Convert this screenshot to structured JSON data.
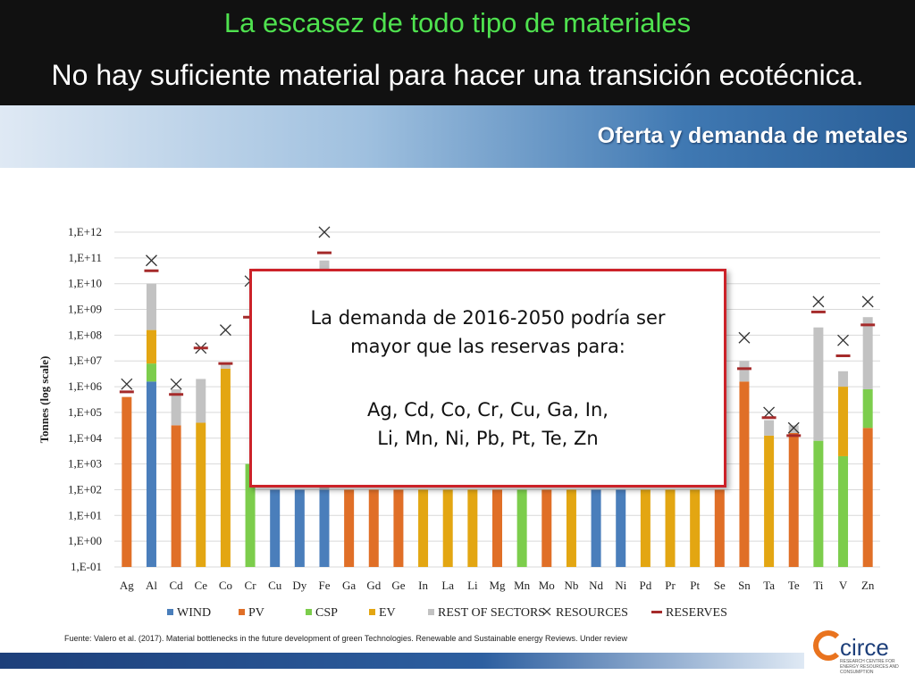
{
  "header": {
    "title": "La escasez de todo tipo de materiales",
    "subtitle": "No hay suficiente material para hacer una transición ecotécnica."
  },
  "band": {
    "title": "Oferta y demanda de metales"
  },
  "colors": {
    "wind": "#4a7ebb",
    "pv": "#e06f27",
    "csp": "#7ccd4c",
    "ev": "#e3a612",
    "rest": "#c2c2c2",
    "resources": "#333333",
    "reserves": "#a52a2a"
  },
  "chart_data": {
    "type": "bar",
    "stacked": true,
    "log_scale": true,
    "ylabel": "Tonnes (log scale)",
    "ylim": [
      -1,
      12
    ],
    "ytick_labels": [
      "1,E-01",
      "1,E+00",
      "1,E+01",
      "1,E+02",
      "1,E+03",
      "1,E+04",
      "1,E+05",
      "1,E+06",
      "1,E+07",
      "1,E+08",
      "1,E+09",
      "1,E+10",
      "1,E+11",
      "1,E+12"
    ],
    "categories": [
      "Ag",
      "Al",
      "Cd",
      "Ce",
      "Co",
      "Cr",
      "Cu",
      "Dy",
      "Fe",
      "Ga",
      "Gd",
      "Ge",
      "In",
      "La",
      "Li",
      "Mg",
      "Mn",
      "Mo",
      "Nb",
      "Nd",
      "Ni",
      "Pd",
      "Pr",
      "Pt",
      "Se",
      "Sn",
      "Ta",
      "Te",
      "Ti",
      "V",
      "Zn"
    ],
    "series_names": [
      "WIND",
      "PV",
      "CSP",
      "EV",
      "REST OF SECTORS"
    ],
    "stack_tops_log10": [
      [
        null,
        5.6,
        null,
        null,
        null
      ],
      [
        6.2,
        null,
        6.9,
        8.2,
        10.0
      ],
      [
        null,
        4.5,
        null,
        null,
        5.9
      ],
      [
        null,
        null,
        null,
        4.6,
        6.3
      ],
      [
        null,
        null,
        null,
        6.7,
        6.9
      ],
      [
        null,
        null,
        3.0,
        null,
        null
      ],
      [
        2.0,
        null,
        null,
        null,
        null
      ],
      [
        2.0,
        null,
        null,
        null,
        null
      ],
      [
        2.0,
        null,
        null,
        null,
        10.9
      ],
      [
        null,
        2.0,
        null,
        null,
        null
      ],
      [
        null,
        2.0,
        null,
        null,
        null
      ],
      [
        null,
        2.0,
        null,
        null,
        null
      ],
      [
        null,
        null,
        null,
        2.0,
        null
      ],
      [
        null,
        null,
        null,
        2.0,
        null
      ],
      [
        null,
        null,
        null,
        2.0,
        null
      ],
      [
        null,
        2.0,
        null,
        null,
        null
      ],
      [
        null,
        null,
        2.0,
        null,
        null
      ],
      [
        null,
        2.0,
        null,
        null,
        null
      ],
      [
        null,
        null,
        null,
        2.0,
        null
      ],
      [
        2.0,
        null,
        null,
        null,
        null
      ],
      [
        2.0,
        null,
        null,
        null,
        null
      ],
      [
        null,
        null,
        null,
        2.0,
        null
      ],
      [
        null,
        null,
        null,
        2.0,
        null
      ],
      [
        null,
        null,
        null,
        2.0,
        null
      ],
      [
        null,
        2.0,
        null,
        null,
        null
      ],
      [
        null,
        6.2,
        null,
        null,
        7.0
      ],
      [
        null,
        null,
        null,
        4.1,
        4.7
      ],
      [
        null,
        4.2,
        null,
        null,
        4.5
      ],
      [
        null,
        null,
        3.9,
        null,
        8.3
      ],
      [
        null,
        null,
        3.3,
        6.0,
        6.6
      ],
      [
        null,
        4.4,
        5.9,
        null,
        8.7
      ]
    ],
    "resources_log10": [
      6.1,
      10.9,
      6.1,
      7.5,
      8.2,
      10.1,
      null,
      null,
      12.0,
      null,
      null,
      null,
      null,
      null,
      null,
      null,
      null,
      null,
      null,
      null,
      null,
      null,
      null,
      null,
      null,
      7.9,
      5.0,
      4.4,
      9.3,
      7.8,
      9.3
    ],
    "reserves_log10": [
      5.8,
      10.5,
      5.7,
      7.5,
      6.9,
      8.7,
      null,
      null,
      11.2,
      null,
      null,
      null,
      null,
      null,
      null,
      null,
      null,
      null,
      null,
      null,
      null,
      null,
      null,
      null,
      null,
      6.7,
      4.8,
      4.1,
      8.9,
      7.2,
      8.4
    ],
    "legend": [
      "WIND",
      "PV",
      "CSP",
      "EV",
      "REST OF SECTORS",
      "RESOURCES",
      "RESERVES"
    ],
    "legend_position": "bottom"
  },
  "callout": {
    "line1": "La demanda de 2016-2050 podría ser",
    "line2": "mayor que las reservas para:",
    "line3": "Ag, Cd, Co, Cr, Cu, Ga, In,",
    "line4": "Li, Mn, Ni, Pb, Pt, Te, Zn"
  },
  "source": "Fuente: Valero et al. (2017). Material bottlenecks in the future development of green Technologies. Renewable and Sustainable energy Reviews. Under review",
  "logo": {
    "name": "circe",
    "tagline": "RESEARCH CENTRE FOR ENERGY RESOURCES AND CONSUMPTION"
  }
}
